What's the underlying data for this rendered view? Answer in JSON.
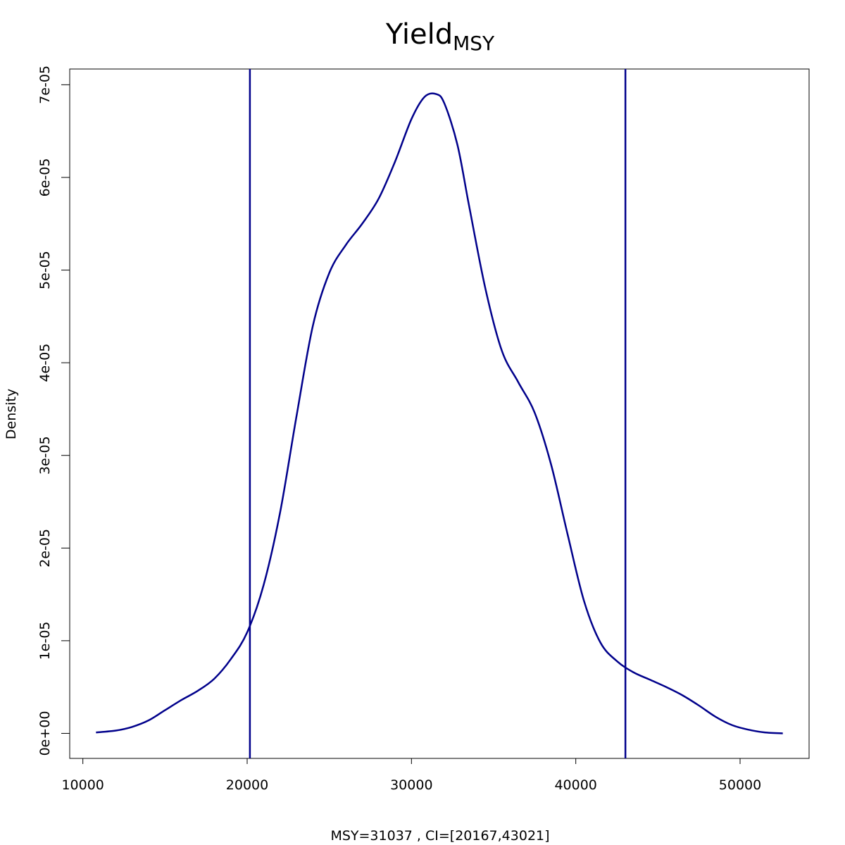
{
  "chart_data": {
    "type": "line",
    "title": "Yield",
    "title_subscript": "MSY",
    "xlabel": "MSY=31037 , CI=[20167,43021]",
    "ylabel": "Density",
    "xlim": [
      9200,
      54200
    ],
    "ylim": [
      -2.7e-06,
      7.17e-05
    ],
    "x_ticks": [
      10000,
      20000,
      30000,
      40000,
      50000
    ],
    "x_tick_labels": [
      "10000",
      "20000",
      "30000",
      "40000",
      "50000"
    ],
    "y_ticks": [
      0,
      1e-05,
      2e-05,
      3e-05,
      4e-05,
      5e-05,
      6e-05,
      7e-05
    ],
    "y_tick_labels": [
      "0e+00",
      "1e-05",
      "2e-05",
      "3e-05",
      "4e-05",
      "5e-05",
      "6e-05",
      "7e-05"
    ],
    "grid": false,
    "color": "#00008B",
    "series": [
      {
        "x": [
          10800,
          12000,
          13000,
          14000,
          15000,
          16000,
          17000,
          18000,
          19000,
          20000,
          21000,
          22000,
          23000,
          24000,
          25000,
          26000,
          27000,
          28000,
          29000,
          30000,
          30800,
          31500,
          32000,
          32800,
          33500,
          34500,
          35500,
          36500,
          37500,
          38500,
          39500,
          40500,
          41500,
          42500,
          43500,
          44500,
          45500,
          46500,
          47500,
          48500,
          49500,
          50500,
          51500,
          52600
        ],
        "y": [
          1e-07,
          3e-07,
          7e-07,
          1.4e-06,
          2.5e-06,
          3.6e-06,
          4.6e-06,
          5.9e-06,
          8e-06,
          1.09e-05,
          1.6e-05,
          2.38e-05,
          3.42e-05,
          4.4e-05,
          4.97e-05,
          5.27e-05,
          5.5e-05,
          5.77e-05,
          6.17e-05,
          6.63e-05,
          6.87e-05,
          6.9e-05,
          6.8e-05,
          6.35e-05,
          5.7e-05,
          4.8e-05,
          4.13e-05,
          3.79e-05,
          3.46e-05,
          2.9e-05,
          2.15e-05,
          1.43e-05,
          9.8e-06,
          7.8e-06,
          6.6e-06,
          5.8e-06,
          5e-06,
          4.1e-06,
          3e-06,
          1.8e-06,
          9e-07,
          4e-07,
          1e-07,
          0.0
        ]
      }
    ],
    "vlines": [
      20167,
      43021
    ]
  }
}
